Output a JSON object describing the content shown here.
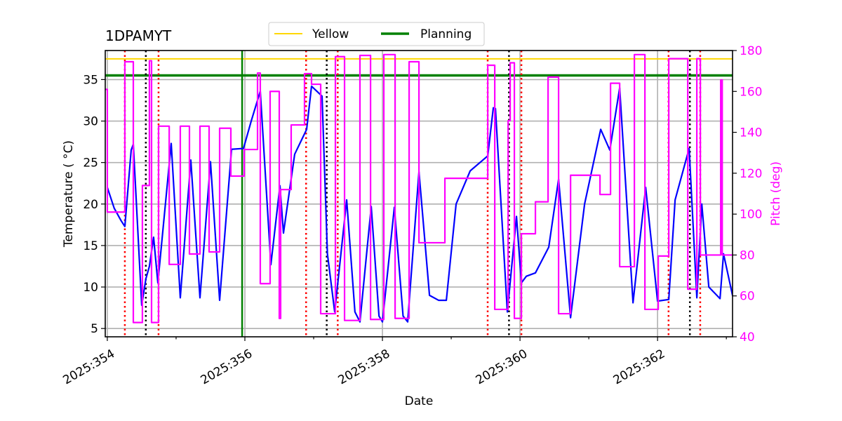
{
  "chart_data": {
    "type": "line",
    "title": "1DPAMYT",
    "xlabel": "Date",
    "ylabel": "Temperature ( °C)",
    "y2label": "Pitch (deg)",
    "xlim": [
      353.97,
      363.09
    ],
    "ylim": [
      4.0,
      38.5
    ],
    "y2lim": [
      40,
      180
    ],
    "x_ticks": [
      354,
      356,
      358,
      360,
      362
    ],
    "x_tick_labels": [
      "2025:354",
      "2025:356",
      "2025:358",
      "2025:360",
      "2025:362"
    ],
    "y_ticks": [
      5,
      10,
      15,
      20,
      25,
      30,
      35
    ],
    "y2_ticks": [
      40,
      60,
      80,
      100,
      120,
      140,
      160,
      180
    ],
    "grid": true,
    "legend": {
      "placement": "top-center",
      "entries": [
        {
          "label": "Yellow",
          "color": "#ffd700"
        },
        {
          "label": "Planning",
          "color": "#008000"
        }
      ]
    },
    "hlines": [
      {
        "name": "Yellow",
        "y": 37.5,
        "color": "#ffd700"
      },
      {
        "name": "Planning",
        "y": 35.5,
        "color": "#008000"
      }
    ],
    "vline_green": {
      "x": 355.96,
      "color": "#008000"
    },
    "vlines_black_dotted": [
      354.56,
      357.19,
      359.84,
      362.47
    ],
    "vlines_red_dotted": [
      354.255,
      354.745,
      356.89,
      357.35,
      359.53,
      360.02,
      362.16,
      362.62
    ],
    "series": [
      {
        "name": "Temperature",
        "axis": "left",
        "color": "#0000ff",
        "points": [
          [
            354.0,
            22.0
          ],
          [
            354.1,
            19.5
          ],
          [
            354.2,
            18.0
          ],
          [
            354.255,
            17.3
          ],
          [
            354.347,
            26.5
          ],
          [
            354.378,
            27.2
          ],
          [
            354.5,
            7.8
          ],
          [
            354.561,
            11.0
          ],
          [
            354.612,
            12.5
          ],
          [
            354.673,
            16.0
          ],
          [
            354.735,
            10.5
          ],
          [
            354.929,
            27.3
          ],
          [
            355.061,
            8.7
          ],
          [
            355.214,
            25.3
          ],
          [
            355.347,
            8.7
          ],
          [
            355.5,
            25.1
          ],
          [
            355.633,
            8.4
          ],
          [
            355.806,
            26.6
          ],
          [
            355.98,
            26.7
          ],
          [
            356.092,
            30.0
          ],
          [
            356.224,
            33.6
          ],
          [
            356.378,
            12.7
          ],
          [
            356.51,
            22.2
          ],
          [
            356.561,
            16.5
          ],
          [
            356.724,
            26.0
          ],
          [
            356.898,
            29.0
          ],
          [
            356.969,
            34.2
          ],
          [
            357.122,
            33.0
          ],
          [
            357.2,
            14.0
          ],
          [
            357.306,
            7.0
          ],
          [
            357.48,
            20.5
          ],
          [
            357.6,
            7.0
          ],
          [
            357.673,
            5.8
          ],
          [
            357.837,
            19.7
          ],
          [
            357.95,
            6.5
          ],
          [
            358.0,
            5.8
          ],
          [
            358.173,
            19.6
          ],
          [
            358.3,
            6.5
          ],
          [
            358.367,
            5.8
          ],
          [
            358.531,
            23.9
          ],
          [
            358.684,
            9.0
          ],
          [
            358.816,
            8.4
          ],
          [
            358.929,
            8.4
          ],
          [
            359.071,
            20.0
          ],
          [
            359.276,
            24.0
          ],
          [
            359.531,
            25.8
          ],
          [
            359.612,
            31.6
          ],
          [
            359.643,
            31.5
          ],
          [
            359.816,
            7.0
          ],
          [
            359.949,
            18.5
          ],
          [
            360.02,
            10.5
          ],
          [
            360.092,
            11.3
          ],
          [
            360.224,
            11.7
          ],
          [
            360.418,
            14.8
          ],
          [
            360.561,
            23.0
          ],
          [
            360.735,
            6.3
          ],
          [
            360.939,
            20.0
          ],
          [
            361.173,
            29.0
          ],
          [
            361.306,
            26.5
          ],
          [
            361.449,
            34.0
          ],
          [
            361.643,
            8.1
          ],
          [
            361.827,
            22.0
          ],
          [
            362.0,
            8.3
          ],
          [
            362.163,
            8.5
          ],
          [
            362.255,
            20.5
          ],
          [
            362.459,
            26.7
          ],
          [
            362.571,
            8.7
          ],
          [
            362.643,
            20.0
          ],
          [
            362.745,
            10.0
          ],
          [
            362.908,
            8.6
          ],
          [
            362.959,
            14.0
          ],
          [
            363.092,
            8.9
          ]
        ]
      },
      {
        "name": "Pitch",
        "axis": "right",
        "color": "#ff00ff",
        "step": "post",
        "points": [
          [
            353.97,
            161
          ],
          [
            354.0,
            101
          ],
          [
            354.255,
            174.5
          ],
          [
            354.378,
            47
          ],
          [
            354.51,
            114
          ],
          [
            354.612,
            175
          ],
          [
            354.643,
            47
          ],
          [
            354.745,
            143
          ],
          [
            354.9,
            75.4
          ],
          [
            355.061,
            143
          ],
          [
            355.194,
            80.5
          ],
          [
            355.347,
            143
          ],
          [
            355.48,
            81.5
          ],
          [
            355.633,
            142
          ],
          [
            355.796,
            118.6
          ],
          [
            355.99,
            131.6
          ],
          [
            356.184,
            169
          ],
          [
            356.224,
            66
          ],
          [
            356.367,
            160
          ],
          [
            356.5,
            49
          ],
          [
            356.52,
            112
          ],
          [
            356.673,
            143.6
          ],
          [
            356.867,
            168.7
          ],
          [
            356.969,
            163.5
          ],
          [
            357.102,
            51.3
          ],
          [
            357.316,
            177
          ],
          [
            357.449,
            48
          ],
          [
            357.673,
            177.6
          ],
          [
            357.827,
            48.5
          ],
          [
            358.02,
            178
          ],
          [
            358.184,
            49
          ],
          [
            358.388,
            174.5
          ],
          [
            358.531,
            86
          ],
          [
            358.908,
            117.5
          ],
          [
            359.531,
            172.8
          ],
          [
            359.633,
            53.4
          ],
          [
            359.827,
            145.7
          ],
          [
            359.857,
            174
          ],
          [
            359.918,
            49
          ],
          [
            360.02,
            90.4
          ],
          [
            360.224,
            106
          ],
          [
            360.408,
            167
          ],
          [
            360.561,
            51.3
          ],
          [
            360.735,
            119
          ],
          [
            361.163,
            109.6
          ],
          [
            361.316,
            164
          ],
          [
            361.449,
            74.3
          ],
          [
            361.663,
            178
          ],
          [
            361.816,
            53.4
          ],
          [
            362.01,
            79.5
          ],
          [
            362.163,
            176
          ],
          [
            362.439,
            63.3
          ],
          [
            362.571,
            176
          ],
          [
            362.622,
            80
          ],
          [
            362.918,
            165.6
          ],
          [
            362.94,
            80
          ],
          [
            363.09,
            80
          ]
        ]
      }
    ]
  }
}
